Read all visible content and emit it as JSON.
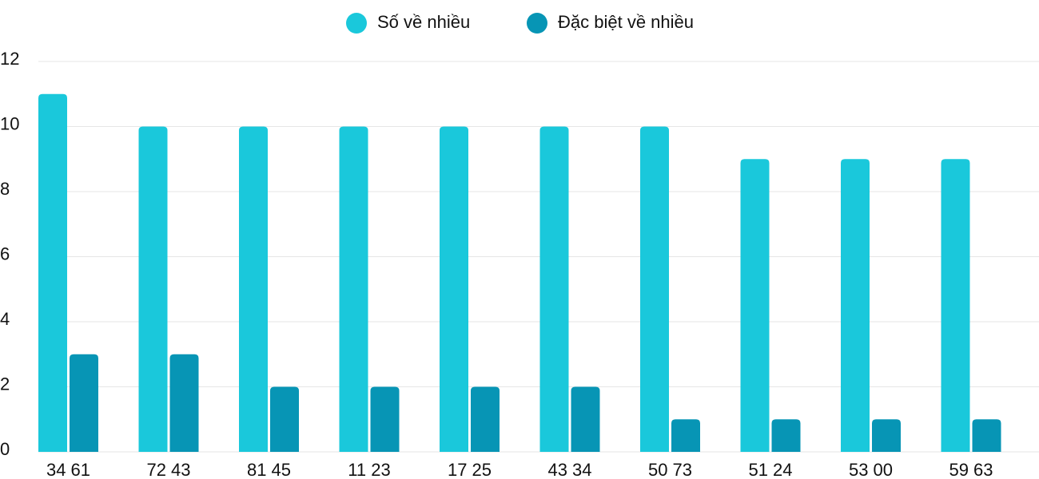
{
  "chart_data": {
    "type": "bar",
    "categories": [
      "34 61",
      "72 43",
      "81 45",
      "11 23",
      "17 25",
      "43 34",
      "50 73",
      "51 24",
      "53 00",
      "59 63"
    ],
    "series": [
      {
        "name": "Số về nhiều",
        "color": "#1ac8db",
        "values": [
          11,
          10,
          10,
          10,
          10,
          10,
          10,
          9,
          9,
          9
        ]
      },
      {
        "name": "Đặc biệt về nhiều",
        "color": "#0795b5",
        "values": [
          3,
          3,
          2,
          2,
          2,
          2,
          1,
          1,
          1,
          1
        ]
      }
    ],
    "ylim": [
      0,
      12
    ],
    "yticks": [
      0,
      2,
      4,
      6,
      8,
      10,
      12
    ],
    "grid": true,
    "legend": "top"
  }
}
